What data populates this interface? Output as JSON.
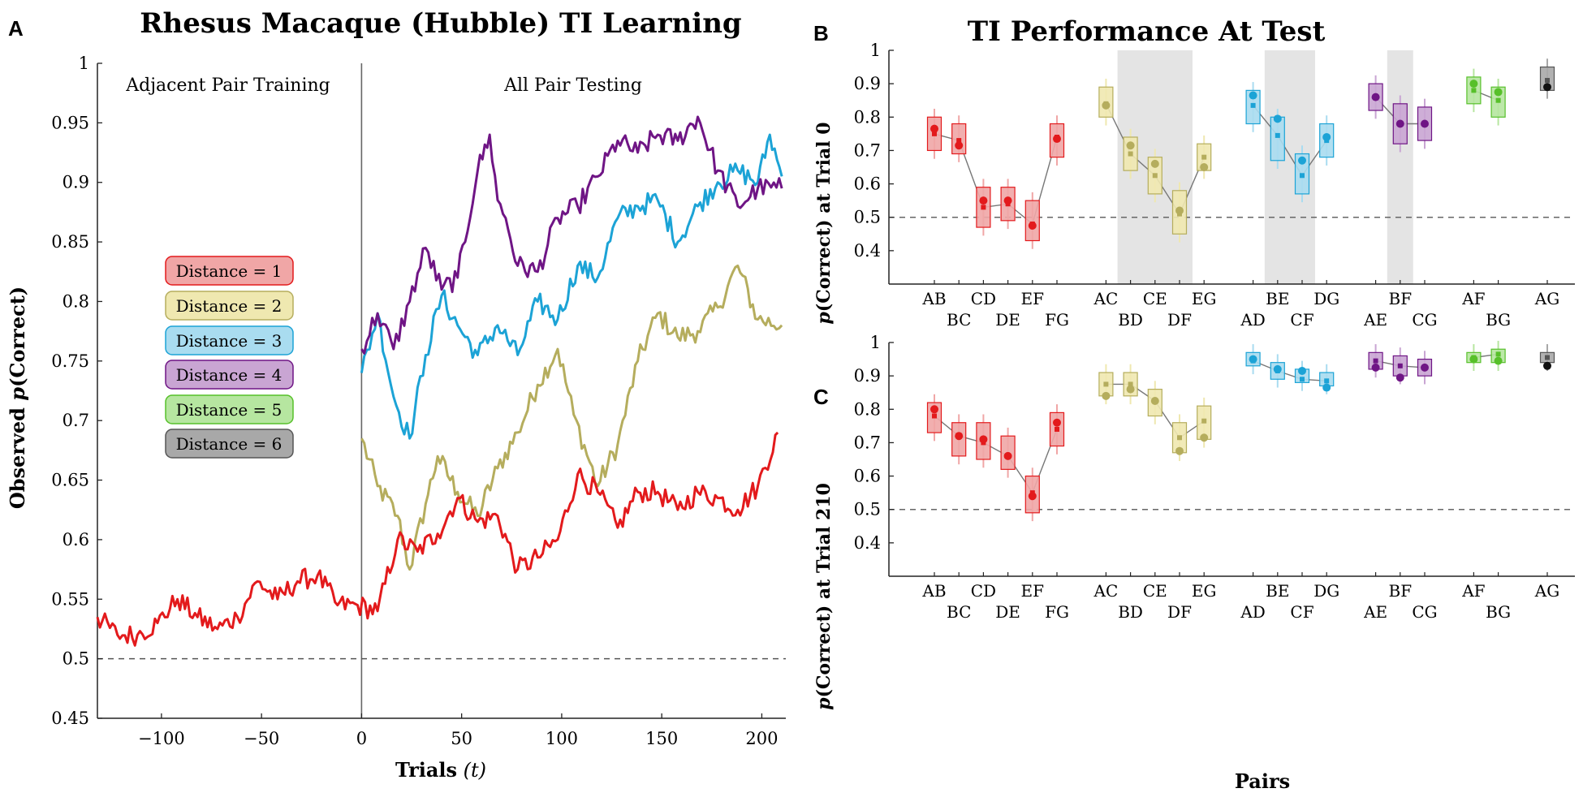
{
  "panel_labels": {
    "a": "A",
    "b": "B",
    "c": "C"
  },
  "colors": {
    "d1": "#e31a1c",
    "d2": "#b5ad5d",
    "d3": "#1ca3d6",
    "d4": "#6f1585",
    "d5": "#57c02a",
    "d6": "#555555",
    "d1_fill": "#f0a6a6",
    "d2_fill": "#efe8b0",
    "d3_fill": "#a9dcf0",
    "d4_fill": "#c9a5d3",
    "d5_fill": "#b6e6a0",
    "d6_fill": "#a8a8a8",
    "shade": "#e4e4e4"
  },
  "legend": {
    "items": [
      "Distance = 1",
      "Distance = 2",
      "Distance = 3",
      "Distance = 4",
      "Distance = 5",
      "Distance = 6"
    ]
  },
  "chart_data": [
    {
      "id": "A",
      "type": "line",
      "title": "Rhesus Macaque (Hubble) TI Learning",
      "xlabel_bold": "Trials",
      "xlabel_var": "(t)",
      "ylabel_prefix": "Observed ",
      "ylabel_var": "p",
      "ylabel_suffix": "(Correct)",
      "xlim": [
        -132,
        212
      ],
      "ylim": [
        0.45,
        1.0
      ],
      "xticks": [
        -100,
        -50,
        0,
        50,
        100,
        150,
        200
      ],
      "xtick_labels": [
        "−100",
        "−50",
        "0",
        "50",
        "100",
        "150",
        "200"
      ],
      "yticks": [
        0.45,
        0.5,
        0.55,
        0.6,
        0.65,
        0.7,
        0.75,
        0.8,
        0.85,
        0.9,
        0.95,
        1.0
      ],
      "ytick_labels": [
        "0.45",
        "0.5",
        "0.55",
        "0.6",
        "0.65",
        "0.7",
        "0.75",
        "0.8",
        "0.85",
        "0.9",
        "0.95",
        "1"
      ],
      "chance": 0.5,
      "phase_split": 0,
      "phase_labels": [
        "Adjacent Pair Training",
        "All Pair Testing"
      ],
      "series": [
        {
          "name": "Distance = 1",
          "x": [
            -132,
            -122,
            -112,
            -102,
            -92,
            -82,
            -72,
            -62,
            -52,
            -42,
            -32,
            -22,
            -12,
            -2,
            8,
            18,
            28,
            38,
            48,
            58,
            68,
            78,
            88,
            98,
            108,
            118,
            128,
            138,
            148,
            158,
            168,
            178,
            188,
            198,
            208
          ],
          "y": [
            0.535,
            0.52,
            0.52,
            0.53,
            0.55,
            0.535,
            0.525,
            0.535,
            0.565,
            0.55,
            0.565,
            0.57,
            0.545,
            0.545,
            0.54,
            0.6,
            0.59,
            0.605,
            0.635,
            0.615,
            0.62,
            0.575,
            0.585,
            0.6,
            0.655,
            0.64,
            0.61,
            0.64,
            0.64,
            0.625,
            0.64,
            0.635,
            0.625,
            0.645,
            0.69
          ]
        },
        {
          "name": "Distance = 2",
          "x": [
            0,
            8,
            18,
            24,
            32,
            38,
            48,
            58,
            68,
            78,
            88,
            98,
            106,
            118,
            128,
            138,
            148,
            158,
            168,
            178,
            188,
            198,
            210
          ],
          "y": [
            0.685,
            0.645,
            0.62,
            0.575,
            0.63,
            0.67,
            0.64,
            0.62,
            0.66,
            0.69,
            0.73,
            0.76,
            0.705,
            0.645,
            0.68,
            0.75,
            0.79,
            0.77,
            0.775,
            0.795,
            0.83,
            0.785,
            0.78
          ]
        },
        {
          "name": "Distance = 3",
          "x": [
            0,
            8,
            16,
            24,
            32,
            40,
            48,
            58,
            68,
            78,
            88,
            98,
            108,
            118,
            128,
            138,
            148,
            158,
            168,
            178,
            188,
            198,
            204,
            210
          ],
          "y": [
            0.74,
            0.79,
            0.72,
            0.685,
            0.755,
            0.805,
            0.78,
            0.755,
            0.78,
            0.755,
            0.8,
            0.785,
            0.83,
            0.82,
            0.87,
            0.88,
            0.885,
            0.85,
            0.88,
            0.9,
            0.91,
            0.9,
            0.94,
            0.905
          ]
        },
        {
          "name": "Distance = 4",
          "x": [
            0,
            8,
            16,
            24,
            32,
            40,
            48,
            58,
            64,
            68,
            72,
            78,
            88,
            98,
            108,
            118,
            128,
            138,
            148,
            158,
            168,
            178,
            188,
            198,
            210
          ],
          "y": [
            0.76,
            0.79,
            0.76,
            0.8,
            0.845,
            0.81,
            0.82,
            0.91,
            0.94,
            0.885,
            0.87,
            0.83,
            0.825,
            0.87,
            0.88,
            0.905,
            0.935,
            0.925,
            0.94,
            0.935,
            0.955,
            0.91,
            0.88,
            0.895,
            0.895
          ]
        }
      ]
    },
    {
      "id": "B",
      "type": "box",
      "title": "TI Performance At Test",
      "ylabel_var": "p",
      "ylabel_suffix": "(Correct) at Trial 0",
      "ylim": [
        0.3,
        1.0
      ],
      "yticks": [
        0.4,
        0.5,
        0.6,
        0.7,
        0.8,
        0.9,
        1.0
      ],
      "ytick_labels": [
        "0.4",
        "0.5",
        "0.6",
        "0.7",
        "0.8",
        "0.9",
        "1"
      ],
      "chance": 0.5,
      "shaded_pairs": [
        "BD-DF",
        "BE-CF",
        "BF"
      ],
      "categories": [
        "AB",
        "BC",
        "CD",
        "DE",
        "EF",
        "FG",
        "AC",
        "BD",
        "CE",
        "DF",
        "EG",
        "AD",
        "BE",
        "CF",
        "DG",
        "AE",
        "BF",
        "CG",
        "AF",
        "BG",
        "AG"
      ],
      "distance": [
        1,
        1,
        1,
        1,
        1,
        1,
        2,
        2,
        2,
        2,
        2,
        3,
        3,
        3,
        3,
        4,
        4,
        4,
        5,
        5,
        6
      ],
      "box_low": [
        0.7,
        0.69,
        0.47,
        0.49,
        0.43,
        0.68,
        0.8,
        0.64,
        0.57,
        0.45,
        0.64,
        0.78,
        0.67,
        0.57,
        0.68,
        0.82,
        0.72,
        0.73,
        0.84,
        0.8,
        0.88
      ],
      "box_high": [
        0.8,
        0.78,
        0.59,
        0.59,
        0.55,
        0.78,
        0.89,
        0.74,
        0.68,
        0.58,
        0.72,
        0.88,
        0.8,
        0.69,
        0.78,
        0.9,
        0.84,
        0.83,
        0.92,
        0.89,
        0.95
      ],
      "median": [
        0.75,
        0.73,
        0.53,
        0.54,
        0.48,
        0.74,
        0.84,
        0.69,
        0.625,
        0.51,
        0.68,
        0.835,
        0.745,
        0.625,
        0.73,
        0.86,
        0.78,
        0.78,
        0.88,
        0.85,
        0.91
      ],
      "observed": [
        0.765,
        0.715,
        0.55,
        0.55,
        0.475,
        0.735,
        0.835,
        0.715,
        0.66,
        0.52,
        0.65,
        0.865,
        0.795,
        0.67,
        0.74,
        0.86,
        0.78,
        0.78,
        0.9,
        0.875,
        0.89
      ]
    },
    {
      "id": "C",
      "type": "box",
      "xlabel": "Pairs",
      "ylabel_var": "p",
      "ylabel_suffix": "(Correct) at Trial 210",
      "ylim": [
        0.3,
        1.0
      ],
      "yticks": [
        0.4,
        0.5,
        0.6,
        0.7,
        0.8,
        0.9,
        1.0
      ],
      "ytick_labels": [
        "0.4",
        "0.5",
        "0.6",
        "0.7",
        "0.8",
        "0.9",
        "1"
      ],
      "chance": 0.5,
      "categories": [
        "AB",
        "BC",
        "CD",
        "DE",
        "EF",
        "FG",
        "AC",
        "BD",
        "CE",
        "DF",
        "EG",
        "AD",
        "BE",
        "CF",
        "DG",
        "AE",
        "BF",
        "CG",
        "AF",
        "BG",
        "AG"
      ],
      "distance": [
        1,
        1,
        1,
        1,
        1,
        1,
        2,
        2,
        2,
        2,
        2,
        3,
        3,
        3,
        3,
        4,
        4,
        4,
        5,
        5,
        6
      ],
      "box_low": [
        0.73,
        0.66,
        0.65,
        0.62,
        0.49,
        0.69,
        0.84,
        0.84,
        0.78,
        0.67,
        0.71,
        0.93,
        0.89,
        0.88,
        0.87,
        0.92,
        0.9,
        0.9,
        0.94,
        0.94,
        0.94
      ],
      "box_high": [
        0.82,
        0.76,
        0.76,
        0.72,
        0.6,
        0.79,
        0.91,
        0.91,
        0.86,
        0.76,
        0.81,
        0.97,
        0.94,
        0.92,
        0.91,
        0.97,
        0.96,
        0.95,
        0.97,
        0.98,
        0.97
      ],
      "median": [
        0.78,
        0.72,
        0.7,
        0.66,
        0.55,
        0.74,
        0.875,
        0.875,
        0.825,
        0.715,
        0.765,
        0.945,
        0.915,
        0.89,
        0.885,
        0.945,
        0.93,
        0.925,
        0.955,
        0.965,
        0.955
      ],
      "observed": [
        0.8,
        0.72,
        0.71,
        0.66,
        0.54,
        0.76,
        0.84,
        0.86,
        0.825,
        0.675,
        0.715,
        0.95,
        0.92,
        0.915,
        0.865,
        0.925,
        0.895,
        0.925,
        0.95,
        0.945,
        0.93
      ]
    }
  ]
}
